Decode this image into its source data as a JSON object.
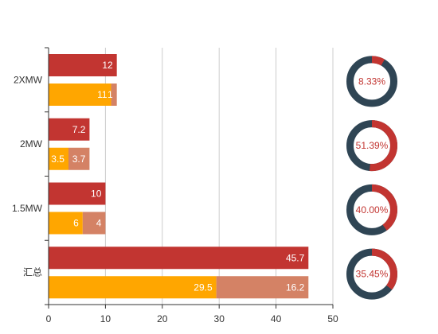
{
  "chart_data": {
    "type": "bar",
    "orientation": "horizontal",
    "categories": [
      "2XMW",
      "2MW",
      "1.5MW",
      "汇总"
    ],
    "xlim": [
      0,
      50
    ],
    "xticks": [
      0,
      10,
      20,
      30,
      40,
      50
    ],
    "grid": true,
    "series": [
      {
        "color": "#c23531",
        "values": [
          12,
          7.2,
          10,
          45.7
        ]
      },
      {
        "color": "#ffa600",
        "stack": "b",
        "values": [
          11,
          3.5,
          6,
          29.5
        ]
      },
      {
        "color": "#d48265",
        "stack": "b",
        "values": [
          1,
          3.7,
          4,
          16.2
        ]
      }
    ],
    "bar_labels": [
      {
        "top": "12",
        "stack": [
          "11",
          "1"
        ]
      },
      {
        "top": "7.2",
        "stack": [
          "3.5",
          "3.7"
        ]
      },
      {
        "top": "10",
        "stack": [
          "6",
          "4"
        ]
      },
      {
        "top": "45.7",
        "stack": [
          "29.5",
          "16.2"
        ]
      }
    ],
    "donuts": {
      "ring_color": "#2f4554",
      "accent_color": "#c23531",
      "items": [
        {
          "value": 8.33,
          "label": "8.33%"
        },
        {
          "value": 51.39,
          "label": "51.39%"
        },
        {
          "value": 40.0,
          "label": "40.00%"
        },
        {
          "value": 35.45,
          "label": "35.45%"
        }
      ]
    },
    "colors": {
      "axis": "#333333",
      "grid": "#cccccc"
    }
  }
}
